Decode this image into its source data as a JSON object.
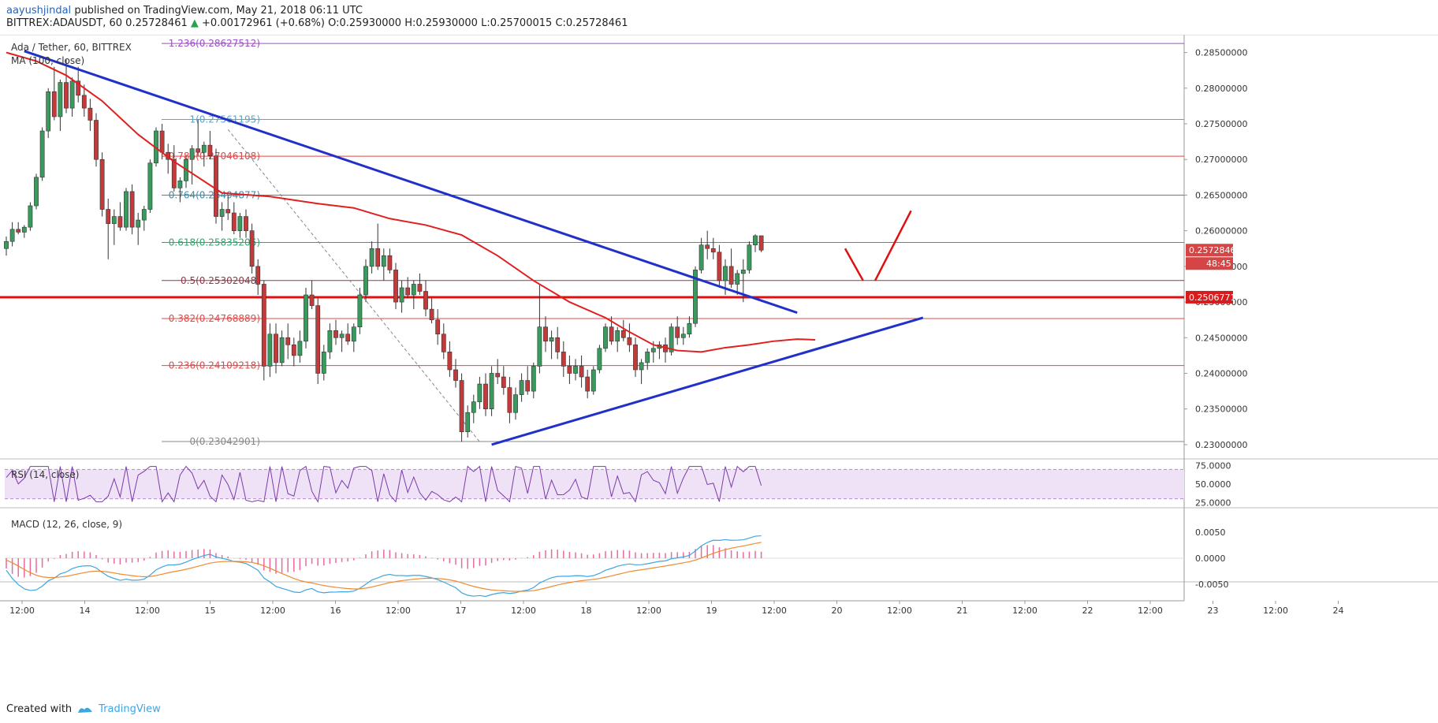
{
  "header": {
    "author": "aayushjindal",
    "published": "published on TradingView.com, May 21, 2018 06:11 UTC"
  },
  "ticker": {
    "symbol": "BITTREX:ADAUSDT, 60",
    "last": "0.25728461",
    "change": "+0.00172961 (+0.68%)",
    "open": "O:0.25930000",
    "high": "H:0.25930000",
    "low": "L:0.25700015",
    "close": "C:0.25728461"
  },
  "legend": {
    "title": "Ada / Tether, 60, BITTREX",
    "ma": "MA (100, close)",
    "rsi": "RSI (14, close)",
    "macd": "MACD (12, 26, close, 9)"
  },
  "footer": {
    "created": "Created with",
    "brand": "TradingView"
  },
  "colors": {
    "up": "#3a9a5e",
    "down": "#c23a3a",
    "trend": "#2130c8",
    "ma": "#e02020",
    "support": "#e01010",
    "rsi": "#7a3aa8",
    "macd": "#3da6e0",
    "signal": "#f08a30",
    "hist": "#e0468a"
  },
  "chart_data": {
    "type": "candlestick",
    "title": "Ada / Tether, 60, BITTREX",
    "price_axis": {
      "range": [
        0.228,
        0.2875
      ],
      "ticks": [
        0.285,
        0.28,
        0.275,
        0.27,
        0.265,
        0.26,
        0.255,
        0.25,
        0.245,
        0.24,
        0.235,
        0.23
      ],
      "tick_labels": [
        "0.28500000",
        "0.28000000",
        "0.27500000",
        "0.27000000",
        "0.26500000",
        "0.26000000",
        "0.25500000",
        "0.25000000",
        "0.24500000",
        "0.24000000",
        "0.23500000",
        "0.23000000"
      ]
    },
    "time_axis": {
      "labels": [
        "12:00",
        "14",
        "12:00",
        "15",
        "12:00",
        "16",
        "12:00",
        "17",
        "12:00",
        "18",
        "12:00",
        "19",
        "12:00",
        "20",
        "12:00",
        "21",
        "12:00",
        "22",
        "12:00",
        "23",
        "12:00",
        "24"
      ]
    },
    "current_price": "0.25728461",
    "countdown": "48:45",
    "support_label": "0.25067714",
    "support_price": 0.25067714,
    "fib_levels": [
      {
        "ratio": "1.236",
        "label": "1.236(0.28627512)",
        "price": 0.28627512,
        "color": "#9c4dcc"
      },
      {
        "ratio": "1",
        "label": "1(0.27561195)",
        "price": 0.27561195,
        "color": "#5aa6c8"
      },
      {
        "ratio": "0.786",
        "label": "0.786(0.27046108)",
        "price": 0.27046108,
        "color": "#e04848"
      },
      {
        "ratio": "0.764",
        "label": "0.764(0.26494877)",
        "price": 0.265,
        "color": "#3a8aa8"
      },
      {
        "ratio": "0.618",
        "label": "0.618(0.25835206)",
        "price": 0.25835206,
        "color": "#2aa86a"
      },
      {
        "ratio": "0.5",
        "label": "0.5(0.25302048)",
        "price": 0.25302048,
        "color": "#8a3a4a"
      },
      {
        "ratio": "0.382",
        "label": "0.382(0.24768889)",
        "price": 0.24768889,
        "color": "#e04848"
      },
      {
        "ratio": "0.236",
        "label": "0.236(0.24109218)",
        "price": 0.24109218,
        "color": "#e04848"
      },
      {
        "ratio": "0",
        "label": "0(0.23042901)",
        "price": 0.23042901,
        "color": "#888888"
      }
    ],
    "candles": [
      [
        0.2575,
        0.2592,
        0.2565,
        0.2585
      ],
      [
        0.2585,
        0.2612,
        0.2578,
        0.2602
      ],
      [
        0.2602,
        0.2612,
        0.2595,
        0.2598
      ],
      [
        0.2598,
        0.2608,
        0.259,
        0.2605
      ],
      [
        0.2605,
        0.264,
        0.26,
        0.2635
      ],
      [
        0.2635,
        0.268,
        0.263,
        0.2675
      ],
      [
        0.2675,
        0.2745,
        0.267,
        0.274
      ],
      [
        0.274,
        0.28,
        0.273,
        0.2795
      ],
      [
        0.2795,
        0.283,
        0.2755,
        0.276
      ],
      [
        0.276,
        0.2812,
        0.274,
        0.2808
      ],
      [
        0.2808,
        0.284,
        0.2765,
        0.2772
      ],
      [
        0.2772,
        0.2815,
        0.276,
        0.281
      ],
      [
        0.281,
        0.283,
        0.278,
        0.279
      ],
      [
        0.279,
        0.2805,
        0.276,
        0.2772
      ],
      [
        0.2772,
        0.2785,
        0.274,
        0.2755
      ],
      [
        0.2755,
        0.2765,
        0.269,
        0.27
      ],
      [
        0.27,
        0.271,
        0.262,
        0.263
      ],
      [
        0.263,
        0.2645,
        0.256,
        0.261
      ],
      [
        0.261,
        0.263,
        0.258,
        0.262
      ],
      [
        0.262,
        0.264,
        0.26,
        0.2605
      ],
      [
        0.2605,
        0.266,
        0.26,
        0.2655
      ],
      [
        0.2655,
        0.2665,
        0.2595,
        0.2605
      ],
      [
        0.2605,
        0.2625,
        0.258,
        0.2615
      ],
      [
        0.2615,
        0.2635,
        0.26,
        0.263
      ],
      [
        0.263,
        0.27,
        0.2625,
        0.2695
      ],
      [
        0.2695,
        0.2745,
        0.269,
        0.274
      ],
      [
        0.274,
        0.275,
        0.27,
        0.271
      ],
      [
        0.271,
        0.2722,
        0.268,
        0.27
      ],
      [
        0.27,
        0.272,
        0.2655,
        0.266
      ],
      [
        0.266,
        0.2675,
        0.264,
        0.267
      ],
      [
        0.267,
        0.2705,
        0.266,
        0.27
      ],
      [
        0.27,
        0.272,
        0.2665,
        0.2715
      ],
      [
        0.2715,
        0.2756,
        0.2705,
        0.271
      ],
      [
        0.271,
        0.2725,
        0.269,
        0.272
      ],
      [
        0.272,
        0.274,
        0.27,
        0.2705
      ],
      [
        0.2705,
        0.2715,
        0.261,
        0.262
      ],
      [
        0.262,
        0.264,
        0.26,
        0.263
      ],
      [
        0.263,
        0.265,
        0.2615,
        0.2625
      ],
      [
        0.2625,
        0.264,
        0.2595,
        0.26
      ],
      [
        0.26,
        0.2625,
        0.259,
        0.262
      ],
      [
        0.262,
        0.263,
        0.259,
        0.26
      ],
      [
        0.26,
        0.261,
        0.254,
        0.255
      ],
      [
        0.255,
        0.256,
        0.251,
        0.2525
      ],
      [
        0.2525,
        0.253,
        0.239,
        0.241
      ],
      [
        0.241,
        0.247,
        0.2395,
        0.2455
      ],
      [
        0.2455,
        0.247,
        0.24,
        0.2415
      ],
      [
        0.2415,
        0.246,
        0.241,
        0.245
      ],
      [
        0.245,
        0.247,
        0.242,
        0.244
      ],
      [
        0.244,
        0.245,
        0.241,
        0.2425
      ],
      [
        0.2425,
        0.246,
        0.2415,
        0.2445
      ],
      [
        0.2445,
        0.252,
        0.2435,
        0.251
      ],
      [
        0.251,
        0.253,
        0.249,
        0.2495
      ],
      [
        0.2495,
        0.2505,
        0.2385,
        0.24
      ],
      [
        0.24,
        0.244,
        0.239,
        0.243
      ],
      [
        0.243,
        0.247,
        0.242,
        0.246
      ],
      [
        0.246,
        0.2475,
        0.244,
        0.245
      ],
      [
        0.245,
        0.246,
        0.243,
        0.2455
      ],
      [
        0.2455,
        0.247,
        0.244,
        0.2445
      ],
      [
        0.2445,
        0.247,
        0.243,
        0.2465
      ],
      [
        0.2465,
        0.252,
        0.2455,
        0.251
      ],
      [
        0.251,
        0.256,
        0.25,
        0.255
      ],
      [
        0.255,
        0.2585,
        0.254,
        0.2575
      ],
      [
        0.2575,
        0.261,
        0.2545,
        0.255
      ],
      [
        0.255,
        0.2575,
        0.253,
        0.2565
      ],
      [
        0.2565,
        0.2575,
        0.254,
        0.2545
      ],
      [
        0.2545,
        0.2555,
        0.249,
        0.25
      ],
      [
        0.25,
        0.253,
        0.2485,
        0.252
      ],
      [
        0.252,
        0.2535,
        0.2505,
        0.251
      ],
      [
        0.251,
        0.253,
        0.249,
        0.2525
      ],
      [
        0.2525,
        0.254,
        0.251,
        0.2515
      ],
      [
        0.2515,
        0.253,
        0.248,
        0.249
      ],
      [
        0.249,
        0.2505,
        0.247,
        0.2475
      ],
      [
        0.2475,
        0.249,
        0.244,
        0.2455
      ],
      [
        0.2455,
        0.247,
        0.242,
        0.243
      ],
      [
        0.243,
        0.2445,
        0.2395,
        0.2405
      ],
      [
        0.2405,
        0.242,
        0.238,
        0.239
      ],
      [
        0.239,
        0.24,
        0.2304,
        0.2318
      ],
      [
        0.2318,
        0.2355,
        0.231,
        0.2345
      ],
      [
        0.2345,
        0.237,
        0.233,
        0.236
      ],
      [
        0.236,
        0.2395,
        0.235,
        0.2385
      ],
      [
        0.2385,
        0.24,
        0.234,
        0.235
      ],
      [
        0.235,
        0.241,
        0.234,
        0.24
      ],
      [
        0.24,
        0.242,
        0.2385,
        0.2395
      ],
      [
        0.2395,
        0.241,
        0.237,
        0.238
      ],
      [
        0.238,
        0.2395,
        0.233,
        0.2345
      ],
      [
        0.2345,
        0.238,
        0.2335,
        0.237
      ],
      [
        0.237,
        0.24,
        0.236,
        0.239
      ],
      [
        0.239,
        0.241,
        0.237,
        0.2375
      ],
      [
        0.2375,
        0.2415,
        0.2365,
        0.241
      ],
      [
        0.241,
        0.2525,
        0.24,
        0.2465
      ],
      [
        0.2465,
        0.248,
        0.243,
        0.2445
      ],
      [
        0.2445,
        0.246,
        0.242,
        0.245
      ],
      [
        0.245,
        0.2465,
        0.242,
        0.243
      ],
      [
        0.243,
        0.2445,
        0.2395,
        0.241
      ],
      [
        0.241,
        0.2425,
        0.2385,
        0.24
      ],
      [
        0.24,
        0.242,
        0.239,
        0.241
      ],
      [
        0.241,
        0.2425,
        0.238,
        0.2395
      ],
      [
        0.2395,
        0.2405,
        0.2365,
        0.2375
      ],
      [
        0.2375,
        0.241,
        0.237,
        0.2405
      ],
      [
        0.2405,
        0.244,
        0.24,
        0.2435
      ],
      [
        0.2435,
        0.247,
        0.243,
        0.2465
      ],
      [
        0.2465,
        0.248,
        0.244,
        0.2445
      ],
      [
        0.2445,
        0.2465,
        0.243,
        0.246
      ],
      [
        0.246,
        0.2475,
        0.2445,
        0.245
      ],
      [
        0.245,
        0.247,
        0.243,
        0.244
      ],
      [
        0.244,
        0.245,
        0.2395,
        0.2405
      ],
      [
        0.2405,
        0.242,
        0.2385,
        0.2415
      ],
      [
        0.2415,
        0.2435,
        0.2405,
        0.243
      ],
      [
        0.243,
        0.2445,
        0.2415,
        0.2435
      ],
      [
        0.2435,
        0.2445,
        0.242,
        0.244
      ],
      [
        0.244,
        0.245,
        0.2415,
        0.243
      ],
      [
        0.243,
        0.247,
        0.2425,
        0.2465
      ],
      [
        0.2465,
        0.248,
        0.244,
        0.245
      ],
      [
        0.245,
        0.2465,
        0.244,
        0.2455
      ],
      [
        0.2455,
        0.248,
        0.245,
        0.247
      ],
      [
        0.247,
        0.255,
        0.2465,
        0.2545
      ],
      [
        0.2545,
        0.259,
        0.254,
        0.258
      ],
      [
        0.258,
        0.26,
        0.256,
        0.2575
      ],
      [
        0.2575,
        0.259,
        0.256,
        0.257
      ],
      [
        0.257,
        0.258,
        0.252,
        0.253
      ],
      [
        0.253,
        0.256,
        0.251,
        0.255
      ],
      [
        0.255,
        0.2575,
        0.252,
        0.2525
      ],
      [
        0.2525,
        0.2545,
        0.251,
        0.254
      ],
      [
        0.254,
        0.256,
        0.25,
        0.2545
      ],
      [
        0.2545,
        0.2585,
        0.254,
        0.258
      ],
      [
        0.258,
        0.2595,
        0.257,
        0.2593
      ],
      [
        0.2593,
        0.2593,
        0.257,
        0.25728
      ]
    ],
    "ma_line": [
      [
        0,
        0.285
      ],
      [
        5,
        0.2838
      ],
      [
        10,
        0.2818
      ],
      [
        16,
        0.2782
      ],
      [
        22,
        0.2735
      ],
      [
        28,
        0.2697
      ],
      [
        36,
        0.2653
      ],
      [
        44,
        0.2648
      ],
      [
        52,
        0.2638
      ],
      [
        58,
        0.2632
      ],
      [
        64,
        0.2617
      ],
      [
        70,
        0.2608
      ],
      [
        76,
        0.2594
      ],
      [
        82,
        0.2565
      ],
      [
        88,
        0.253
      ],
      [
        94,
        0.25
      ],
      [
        100,
        0.2478
      ],
      [
        104,
        0.2458
      ],
      [
        108,
        0.244
      ],
      [
        112,
        0.2432
      ],
      [
        116,
        0.243
      ],
      [
        120,
        0.2436
      ],
      [
        124,
        0.244
      ],
      [
        128,
        0.2445
      ],
      [
        132,
        0.2448
      ],
      [
        135,
        0.2447
      ]
    ],
    "trendlines": [
      {
        "name": "descending-resistance",
        "from": [
          3,
          0.2852
        ],
        "to": [
          132,
          0.2485
        ]
      },
      {
        "name": "ascending-support",
        "from": [
          81,
          0.23
        ],
        "to": [
          153,
          0.2478
        ]
      }
    ],
    "dashed_line": {
      "from": [
        37,
        0.2742
      ],
      "to": [
        79,
        0.2304
      ]
    },
    "projection": [
      [
        140,
        0.2575
      ],
      [
        143,
        0.253
      ],
      [
        145,
        0.253
      ],
      [
        151,
        0.2628
      ]
    ],
    "rsi_panel": {
      "range": [
        20,
        80
      ],
      "ticks": [
        "75.0000",
        "50.0000",
        "25.0000"
      ],
      "bands": [
        30,
        70
      ]
    },
    "macd_panel": {
      "ticks": [
        "0.0050",
        "0.0000",
        "-0.0050"
      ]
    }
  }
}
